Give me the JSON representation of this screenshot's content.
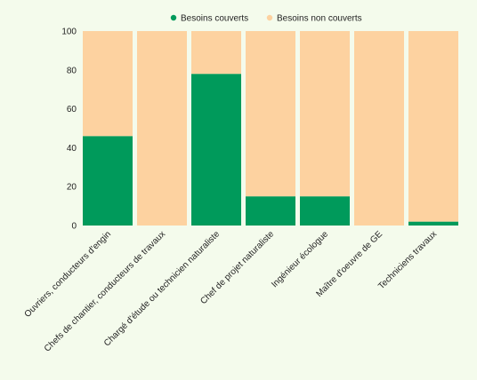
{
  "chart_data": {
    "type": "bar",
    "stacked": true,
    "percent_scale": true,
    "categories": [
      "Ouvriers, conducteurs d'engin",
      "Chefs de chantier, conducteurs de travaux",
      "Chargé d'étude ou technicien naturaliste",
      "Chef de projet naturaliste",
      "Ingénieur écologue",
      "Maître d'oeuvre de GE",
      "Techniciens travaux"
    ],
    "series": [
      {
        "name": "Besoins couverts",
        "color": "#009a5b",
        "values": [
          46,
          0,
          78,
          15,
          15,
          0,
          2
        ]
      },
      {
        "name": "Besoins non couverts",
        "color": "#fdd2a0",
        "values": [
          54,
          100,
          22,
          85,
          85,
          100,
          98
        ]
      }
    ],
    "ylim": [
      0,
      100
    ],
    "yticks": [
      0,
      20,
      40,
      60,
      80,
      100
    ],
    "legend_position": "top-center",
    "grid": false
  }
}
